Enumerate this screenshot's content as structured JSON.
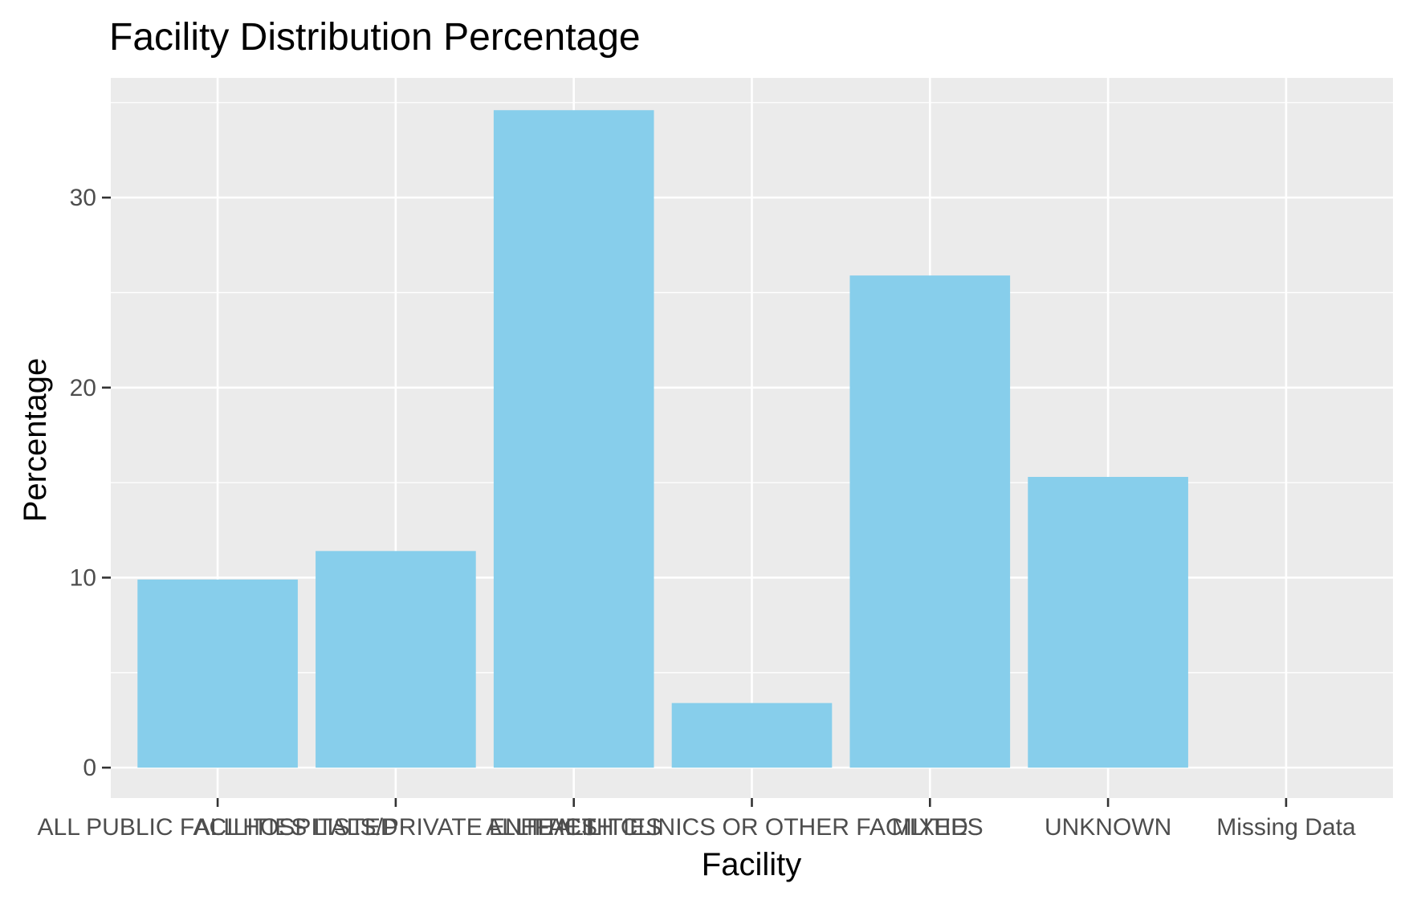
{
  "chart_data": {
    "type": "bar",
    "title": "Facility Distribution Percentage",
    "xlabel": "Facility",
    "ylabel": "Percentage",
    "categories": [
      "ALL PUBLIC FACILITIES LISTED",
      "ALL HOSPITALS/PRIVATE ENTITIES",
      "ALL FACILITIES",
      "HEALTH CLINICS OR OTHER FACILITIES",
      "MIXED",
      "UNKNOWN",
      "Missing Data"
    ],
    "values": [
      9.9,
      11.4,
      34.6,
      3.4,
      25.9,
      15.3,
      0
    ],
    "ylim": [
      -1.6,
      36.3
    ],
    "yticks": [
      0,
      10,
      20,
      30
    ],
    "ytick_labels": [
      "0",
      "10",
      "20",
      "30"
    ],
    "grid": true,
    "legend": "none",
    "colors": {
      "bar": "#87CEEB",
      "panel": "#EBEBEB",
      "grid": "#FFFFFF"
    }
  }
}
